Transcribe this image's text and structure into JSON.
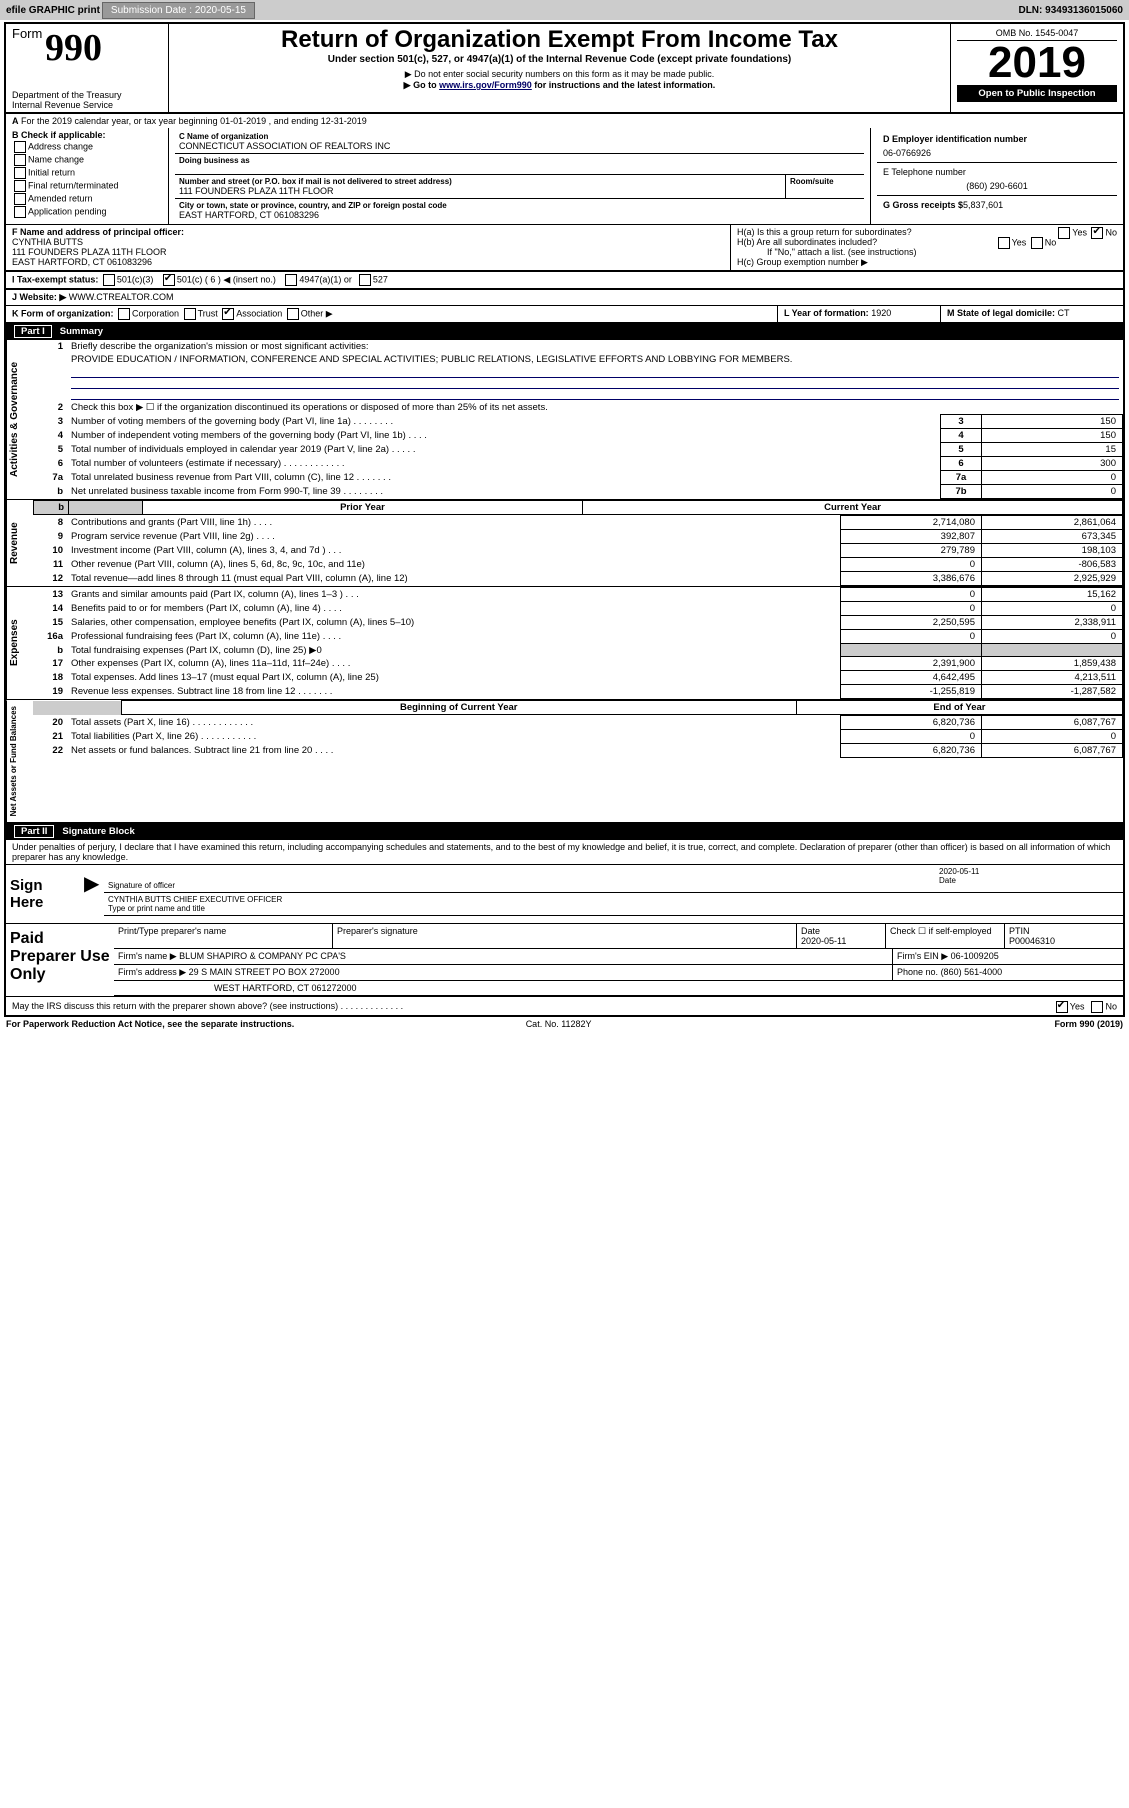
{
  "top": {
    "efile": "efile GRAPHIC print",
    "submission_label": "Submission Date : 2020-05-15",
    "dln": "DLN: 93493136015060"
  },
  "header": {
    "form_word": "Form",
    "form_num": "990",
    "dept": "Department of the Treasury\nInternal Revenue Service",
    "title": "Return of Organization Exempt From Income Tax",
    "undersec": "Under section 501(c), 527, or 4947(a)(1) of the Internal Revenue Code (except private foundations)",
    "note1": "Do not enter social security numbers on this form as it may be made public.",
    "note2_pre": "Go to ",
    "note2_link": "www.irs.gov/Form990",
    "note2_post": " for instructions and the latest information.",
    "omb": "OMB No. 1545-0047",
    "year": "2019",
    "open": "Open to Public Inspection"
  },
  "a_line": "For the 2019 calendar year, or tax year beginning 01-01-2019    , and ending 12-31-2019",
  "b": {
    "label": "B Check if applicable:",
    "items": [
      "Address change",
      "Name change",
      "Initial return",
      "Final return/terminated",
      "Amended return",
      "Application pending"
    ]
  },
  "c": {
    "name_hdr": "C Name of organization",
    "name": "CONNECTICUT ASSOCIATION OF REALTORS INC",
    "dba_hdr": "Doing business as",
    "addr_hdr": "Number and street (or P.O. box if mail is not delivered to street address)",
    "room_hdr": "Room/suite",
    "addr": "111 FOUNDERS PLAZA 11TH FLOOR",
    "city_hdr": "City or town, state or province, country, and ZIP or foreign postal code",
    "city": "EAST HARTFORD, CT  061083296"
  },
  "d": {
    "label": "D Employer identification number",
    "val": "06-0766926"
  },
  "e": {
    "label": "E Telephone number",
    "val": "(860) 290-6601"
  },
  "g": {
    "label": "G Gross receipts $",
    "val": "5,837,601"
  },
  "f": {
    "label": "F  Name and address of principal officer:",
    "name": "CYNTHIA BUTTS",
    "addr1": "111 FOUNDERS PLAZA 11TH FLOOR",
    "addr2": "EAST HARTFORD, CT  061083296"
  },
  "h": {
    "ha": "H(a)  Is this a group return for subordinates?",
    "hb": "H(b)  Are all subordinates included?",
    "hb_note": "If \"No,\" attach a list. (see instructions)",
    "hc": "H(c)  Group exemption number ▶",
    "yes": "Yes",
    "no": "No"
  },
  "i": {
    "label": "I   Tax-exempt status:",
    "o1": "501(c)(3)",
    "o2": "501(c) ( 6 ) ◀ (insert no.)",
    "o3": "4947(a)(1) or",
    "o4": "527"
  },
  "j": {
    "label": "J   Website: ▶",
    "val": "WWW.CTREALTOR.COM"
  },
  "k": {
    "label": "K Form of organization:",
    "o": [
      "Corporation",
      "Trust",
      "Association",
      "Other ▶"
    ]
  },
  "l": {
    "label": "L Year of formation:",
    "val": "1920"
  },
  "m": {
    "label": "M State of legal domicile:",
    "val": "CT"
  },
  "part1_label": "Part I",
  "part1_title": "Summary",
  "act": {
    "q1": "Briefly describe the organization's mission or most significant activities:",
    "mission": "PROVIDE EDUCATION / INFORMATION, CONFERENCE AND SPECIAL ACTIVITIES; PUBLIC RELATIONS, LEGISLATIVE EFFORTS AND LOBBYING FOR MEMBERS.",
    "q2": "Check this box ▶ ☐  if the organization discontinued its operations or disposed of more than 25% of its net assets.",
    "rows": [
      {
        "n": "3",
        "t": "Number of voting members of the governing body (Part VI, line 1a)  .   .   .   .   .   .   .   .",
        "b": "3",
        "v": "150"
      },
      {
        "n": "4",
        "t": "Number of independent voting members of the governing body (Part VI, line 1b)  .   .   .   .",
        "b": "4",
        "v": "150"
      },
      {
        "n": "5",
        "t": "Total number of individuals employed in calendar year 2019 (Part V, line 2a)  .   .   .   .   .",
        "b": "5",
        "v": "15"
      },
      {
        "n": "6",
        "t": "Total number of volunteers (estimate if necessary)   .   .   .   .   .   .   .   .   .   .   .   .",
        "b": "6",
        "v": "300"
      },
      {
        "n": "7a",
        "t": "Total unrelated business revenue from Part VIII, column (C), line 12  .   .   .   .   .   .   .",
        "b": "7a",
        "v": "0"
      },
      {
        "n": "b",
        "t": "Net unrelated business taxable income from Form 990-T, line 39   .   .   .   .   .   .   .   .",
        "b": "7b",
        "v": "0"
      }
    ]
  },
  "rev": {
    "py_label": "Prior Year",
    "cy_label": "Current Year",
    "rows": [
      {
        "n": "8",
        "t": "Contributions and grants (Part VIII, line 1h)  .   .   .   .",
        "py": "2,714,080",
        "cy": "2,861,064"
      },
      {
        "n": "9",
        "t": "Program service revenue (Part VIII, line 2g)  .   .   .   .",
        "py": "392,807",
        "cy": "673,345"
      },
      {
        "n": "10",
        "t": "Investment income (Part VIII, column (A), lines 3, 4, and 7d )  .   .   .",
        "py": "279,789",
        "cy": "198,103"
      },
      {
        "n": "11",
        "t": "Other revenue (Part VIII, column (A), lines 5, 6d, 8c, 9c, 10c, and 11e)",
        "py": "0",
        "cy": "-806,583"
      },
      {
        "n": "12",
        "t": "Total revenue—add lines 8 through 11 (must equal Part VIII, column (A), line 12)",
        "py": "3,386,676",
        "cy": "2,925,929"
      }
    ]
  },
  "exp": {
    "rows": [
      {
        "n": "13",
        "t": "Grants and similar amounts paid (Part IX, column (A), lines 1–3 )  .   .   .",
        "py": "0",
        "cy": "15,162"
      },
      {
        "n": "14",
        "t": "Benefits paid to or for members (Part IX, column (A), line 4)  .   .   .   .",
        "py": "0",
        "cy": "0"
      },
      {
        "n": "15",
        "t": "Salaries, other compensation, employee benefits (Part IX, column (A), lines 5–10)",
        "py": "2,250,595",
        "cy": "2,338,911"
      },
      {
        "n": "16a",
        "t": "Professional fundraising fees (Part IX, column (A), line 11e)  .   .   .   .",
        "py": "0",
        "cy": "0"
      },
      {
        "n": "b",
        "t": "Total fundraising expenses (Part IX, column (D), line 25) ▶0",
        "py": "",
        "cy": "",
        "grey": true
      },
      {
        "n": "17",
        "t": "Other expenses (Part IX, column (A), lines 11a–11d, 11f–24e)  .   .   .   .",
        "py": "2,391,900",
        "cy": "1,859,438"
      },
      {
        "n": "18",
        "t": "Total expenses. Add lines 13–17 (must equal Part IX, column (A), line 25)",
        "py": "4,642,495",
        "cy": "4,213,511"
      },
      {
        "n": "19",
        "t": "Revenue less expenses. Subtract line 18 from line 12  .   .   .   .   .   .   .",
        "py": "-1,255,819",
        "cy": "-1,287,582"
      }
    ]
  },
  "net": {
    "boy": "Beginning of Current Year",
    "eoy": "End of Year",
    "rows": [
      {
        "n": "20",
        "t": "Total assets (Part X, line 16)  .   .   .   .   .   .   .   .   .   .   .   .",
        "py": "6,820,736",
        "cy": "6,087,767"
      },
      {
        "n": "21",
        "t": "Total liabilities (Part X, line 26)  .   .   .   .   .   .   .   .   .   .   .",
        "py": "0",
        "cy": "0"
      },
      {
        "n": "22",
        "t": "Net assets or fund balances. Subtract line 21 from line 20  .   .   .   .",
        "py": "6,820,736",
        "cy": "6,087,767"
      }
    ]
  },
  "vlabels": {
    "act": "Activities & Governance",
    "rev": "Revenue",
    "exp": "Expenses",
    "net": "Net Assets or Fund Balances"
  },
  "part2_label": "Part II",
  "part2_title": "Signature Block",
  "perjury": "Under penalties of perjury, I declare that I have examined this return, including accompanying schedules and statements, and to the best of my knowledge and belief, it is true, correct, and complete. Declaration of preparer (other than officer) is based on all information of which preparer has any knowledge.",
  "sign": {
    "here": "Sign Here",
    "sig_label": "Signature of officer",
    "date": "2020-05-11",
    "date_label": "Date",
    "name": "CYNTHIA BUTTS  CHIEF EXECUTIVE OFFICER",
    "name_label": "Type or print name and title"
  },
  "paid": {
    "label": "Paid Preparer Use Only",
    "h": [
      "Print/Type preparer's name",
      "Preparer's signature",
      "Date",
      "",
      "PTIN"
    ],
    "hvals": [
      "",
      "",
      "2020-05-11",
      "Check ☐  if self-employed",
      "P00046310"
    ],
    "firm_label": "Firm's name      ▶",
    "firm": "BLUM SHAPIRO & COMPANY PC CPA'S",
    "ein_label": "Firm's EIN ▶",
    "ein": "06-1009205",
    "addr_label": "Firm's address ▶",
    "addr1": "29 S MAIN STREET PO BOX 272000",
    "addr2": "WEST HARTFORD, CT  061272000",
    "phone_label": "Phone no.",
    "phone": "(860) 561-4000"
  },
  "discuss": "May the IRS discuss this return with the preparer shown above? (see instructions)  .   .   .   .   .   .   .   .   .   .   .   .   .",
  "discuss_yes": "Yes",
  "discuss_no": "No",
  "foot": {
    "left": "For Paperwork Reduction Act Notice, see the separate instructions.",
    "mid": "Cat. No. 11282Y",
    "right": "Form 990 (2019)"
  },
  "colors": {
    "link": "#0000cc",
    "black": "#000000",
    "grey": "#cccccc"
  }
}
